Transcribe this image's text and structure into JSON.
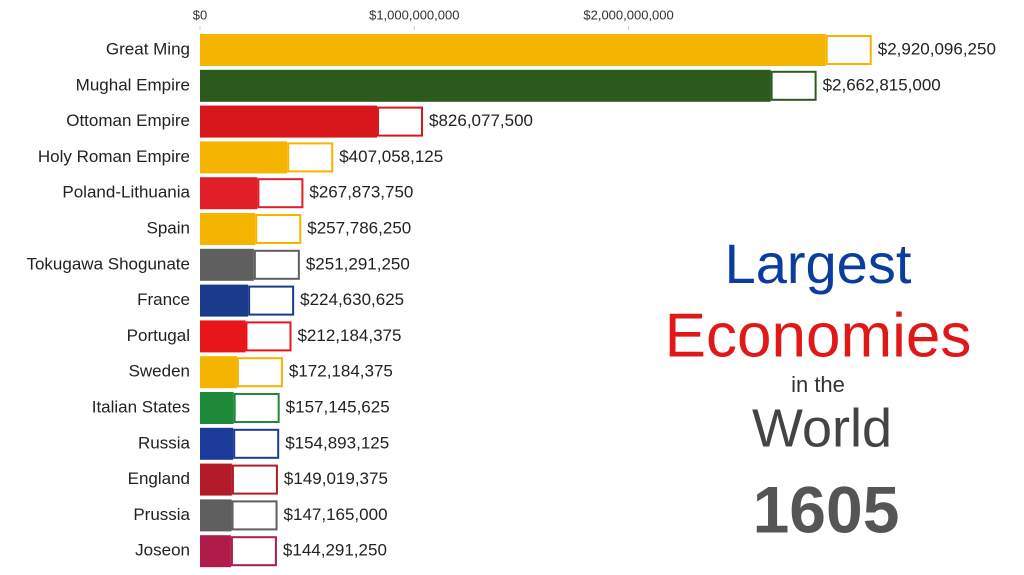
{
  "chart_data": {
    "type": "bar",
    "orientation": "horizontal",
    "categories": [
      "Great Ming",
      "Mughal Empire",
      "Ottoman Empire",
      "Holy Roman Empire",
      "Poland-Lithuania",
      "Spain",
      "Tokugawa Shogunate",
      "France",
      "Portugal",
      "Sweden",
      "Italian States",
      "Russia",
      "England",
      "Prussia",
      "Joseon"
    ],
    "values": [
      2920096250,
      2662815000,
      826077500,
      407058125,
      267873750,
      257786250,
      251291250,
      224630625,
      212184375,
      172184375,
      157145625,
      154893125,
      149019375,
      147165000,
      144291250
    ],
    "value_labels": [
      "$2,920,096,250",
      "$2,662,815,000",
      "$826,077,500",
      "$407,058,125",
      "$267,873,750",
      "$257,786,250",
      "$251,291,250",
      "$224,630,625",
      "$212,184,375",
      "$172,184,375",
      "$157,145,625",
      "$154,893,125",
      "$149,019,375",
      "$147,165,000",
      "$144,291,250"
    ],
    "colors": [
      "#f5b400",
      "#2c5a1c",
      "#d8171c",
      "#f5b400",
      "#e01f28",
      "#f5b400",
      "#5f5f5f",
      "#1b3a8c",
      "#e8161b",
      "#f5b400",
      "#1f8a3a",
      "#1b3a9a",
      "#b31b2b",
      "#5f5f5f",
      "#b01c4a"
    ],
    "xlim": [
      0,
      3780000000
    ],
    "xticks": [
      {
        "value": 0,
        "label": "$0"
      },
      {
        "value": 1000000000,
        "label": "$1,000,000,000"
      },
      {
        "value": 2000000000,
        "label": "$2,000,000,000"
      }
    ],
    "title_lines": [
      "Largest",
      "Economies",
      "in the",
      "World"
    ],
    "year": "1605"
  }
}
